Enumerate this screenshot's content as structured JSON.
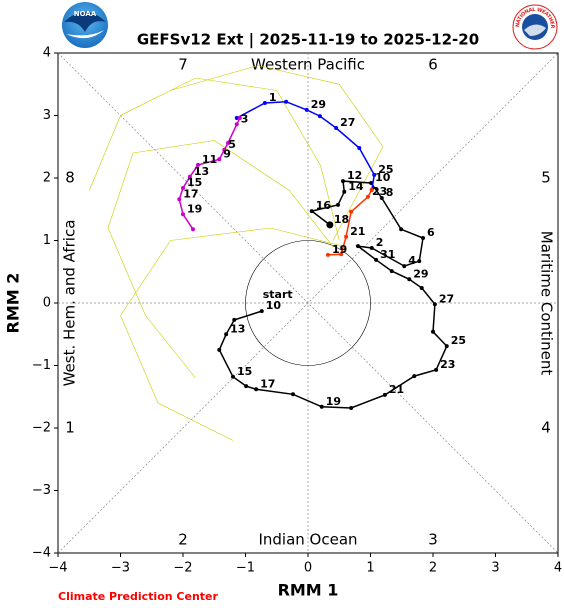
{
  "chart_data": {
    "type": "line",
    "title": "GEFSv12 Ext | 2025-11-19 to 2025-12-20",
    "xlabel": "RMM 1",
    "ylabel": "RMM 2",
    "xlim": [
      -4,
      4
    ],
    "ylim": [
      -4,
      4
    ],
    "xticks": [
      {
        "value": -4,
        "label": "−4"
      },
      {
        "value": -3,
        "label": "−3"
      },
      {
        "value": -2,
        "label": "−2"
      },
      {
        "value": -1,
        "label": "−1"
      },
      0,
      1,
      2,
      3,
      4
    ],
    "yticks": [
      {
        "value": -4,
        "label": "−4"
      },
      {
        "value": -3,
        "label": "−3"
      },
      {
        "value": -2,
        "label": "−2"
      },
      {
        "value": -1,
        "label": "−1"
      },
      0,
      1,
      2,
      3,
      4
    ],
    "phase_labels": [
      "1",
      "2",
      "3",
      "4",
      "5",
      "6",
      "7",
      "8"
    ],
    "region_labels": {
      "top": "Western Pacific",
      "bottom": "Indian Ocean",
      "left": "West. Hem. and Africa",
      "right": "Maritime Continent"
    },
    "start_label": "start",
    "credit": "Climate Prediction Center",
    "noaa_logo_text": "NOAA",
    "nws_logo_text": "NATIONAL WEATHER SERVICE",
    "series": [
      {
        "color": "#cccc00",
        "x": [
          0.4,
          -0.3,
          -1.5,
          -2.8,
          -3.2,
          -2.6,
          -1.8
        ],
        "y": [
          0.9,
          1.8,
          2.6,
          2.4,
          1.2,
          -0.2,
          -1.2
        ]
      },
      {
        "color": "#cccc00",
        "x": [
          0.5,
          0.2,
          -0.5,
          -1.8,
          -3.0,
          -3.5
        ],
        "y": [
          1.0,
          2.2,
          3.4,
          3.6,
          3.0,
          1.8
        ]
      },
      {
        "color": "#cccc00",
        "x": [
          0.6,
          -0.6,
          -2.2,
          -3.0,
          -2.4,
          -1.2
        ],
        "y": [
          0.9,
          1.2,
          1.0,
          -0.2,
          -1.6,
          -2.2
        ]
      },
      {
        "color": "#cccc00",
        "x": [
          0.4,
          1.2,
          0.5,
          -0.8,
          -2.2
        ],
        "y": [
          1.0,
          2.5,
          3.5,
          3.8,
          3.4
        ]
      },
      {
        "color": "#000000",
        "x": [
          -0.74,
          -1.18,
          -1.31,
          -1.42,
          -1.2,
          -0.99,
          -0.83,
          -0.24,
          0.22,
          0.69,
          1.23,
          1.7,
          2.05,
          2.22,
          2.0,
          2.03,
          1.82,
          1.62,
          1.34,
          1.09,
          0.8,
          1.02,
          1.54,
          1.78,
          1.84,
          1.49,
          1.18,
          1.01,
          0.56,
          0.58,
          0.48,
          0.06,
          0.35
        ],
        "y": [
          -0.13,
          -0.27,
          -0.5,
          -0.75,
          -1.18,
          -1.33,
          -1.38,
          -1.46,
          -1.66,
          -1.68,
          -1.47,
          -1.17,
          -1.07,
          -0.69,
          -0.46,
          -0.02,
          0.24,
          0.38,
          0.51,
          0.69,
          0.91,
          0.88,
          0.59,
          0.67,
          1.04,
          1.18,
          1.68,
          1.92,
          1.95,
          1.78,
          1.57,
          1.47,
          1.25
        ],
        "labels": [
          "10",
          null,
          "13",
          null,
          "15",
          null,
          "17",
          null,
          "19",
          null,
          "21",
          null,
          "23",
          "25",
          null,
          "27",
          null,
          "29",
          null,
          "31",
          null,
          "2",
          "4",
          null,
          "6",
          null,
          "8",
          "10",
          "12",
          "14",
          null,
          "16",
          "18"
        ]
      },
      {
        "color": "#0000ff",
        "x": [
          -1.14,
          -0.69,
          -0.35,
          -0.02,
          0.19,
          0.45,
          0.82,
          1.06,
          1.02
        ],
        "y": [
          2.96,
          3.2,
          3.22,
          3.09,
          2.99,
          2.8,
          2.48,
          2.05,
          1.81
        ],
        "labels": [
          null,
          "1",
          null,
          "29",
          null,
          "27",
          null,
          "25",
          null
        ]
      },
      {
        "color": "#ff3300",
        "x": [
          1.02,
          0.96,
          0.69,
          0.61,
          0.53,
          0.32
        ],
        "y": [
          1.81,
          1.7,
          1.46,
          1.06,
          0.78,
          0.77
        ],
        "labels": [
          null,
          "23",
          null,
          "21",
          null,
          "19"
        ]
      },
      {
        "color": "#cc00cc",
        "x": [
          -1.09,
          -1.14,
          -1.28,
          -1.34,
          -1.42,
          -1.76,
          -1.89,
          -2.0,
          -2.06,
          -2.0,
          -1.84
        ],
        "y": [
          2.96,
          2.86,
          2.56,
          2.45,
          2.3,
          2.21,
          2.02,
          1.84,
          1.66,
          1.42,
          1.18
        ],
        "labels": [
          null,
          "3",
          null,
          "5",
          "9",
          "11",
          "13",
          "15",
          "17",
          "19",
          null
        ]
      }
    ]
  }
}
